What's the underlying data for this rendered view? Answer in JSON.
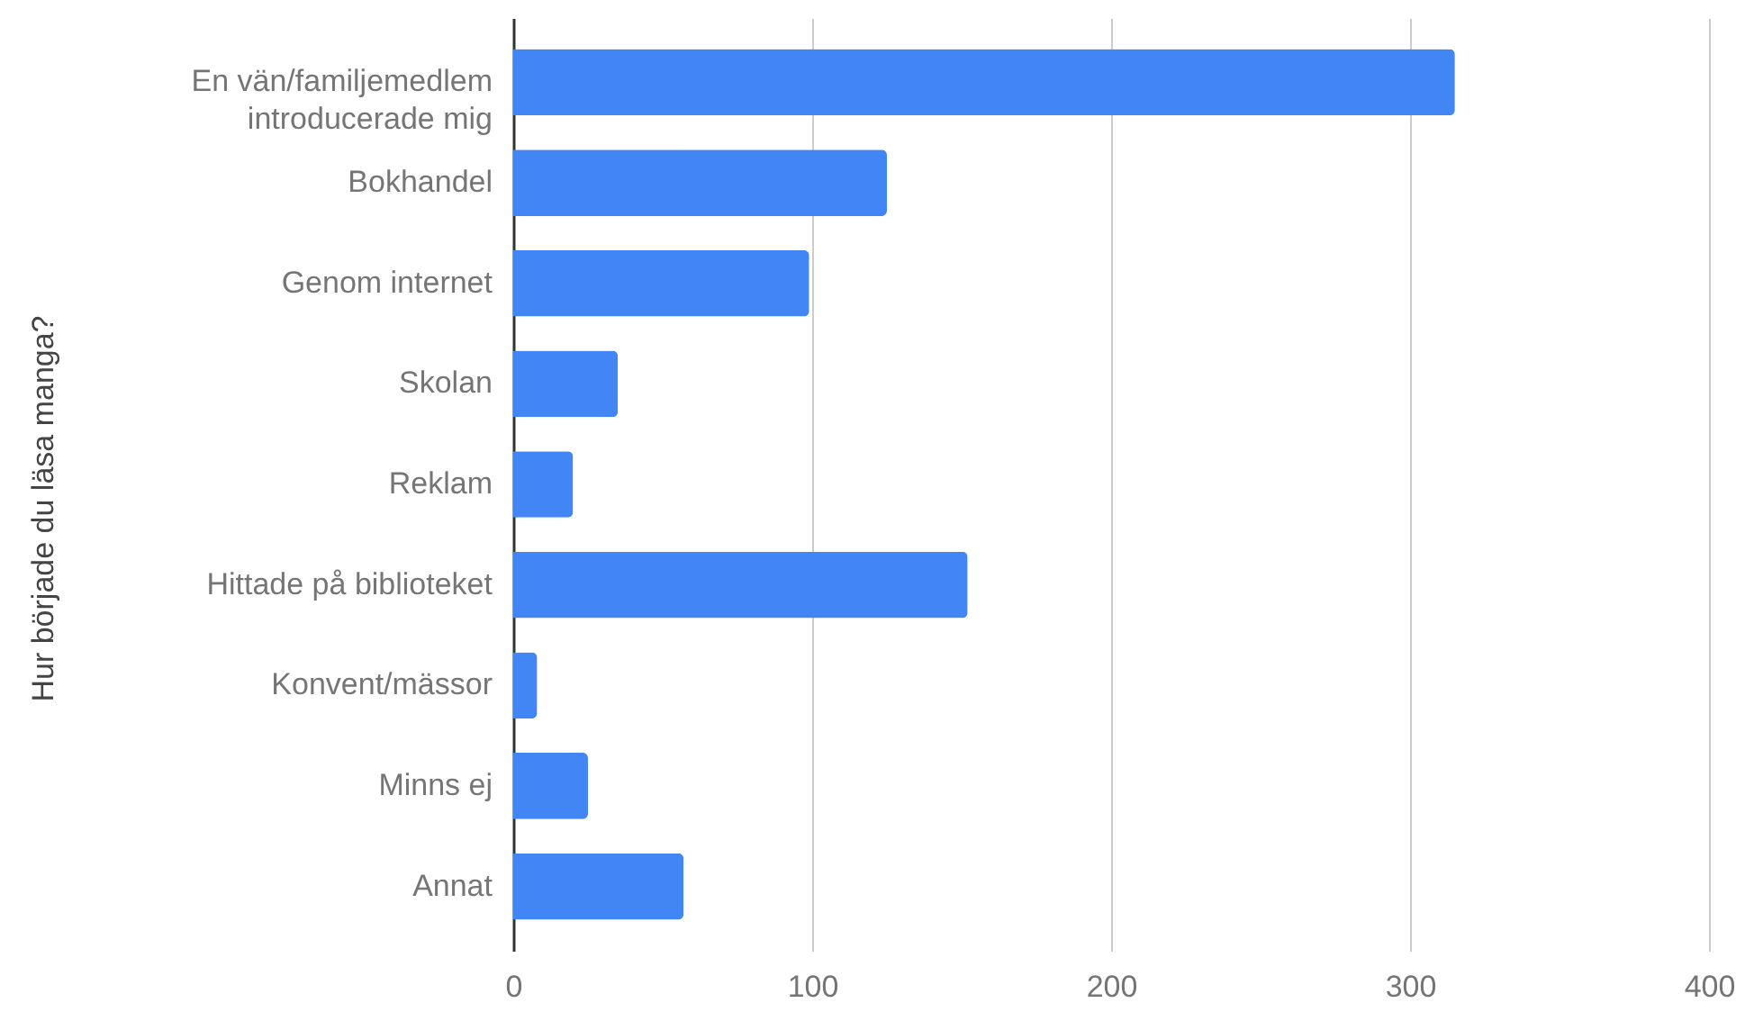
{
  "chart_data": {
    "type": "bar",
    "orientation": "horizontal",
    "ylabel": "Hur började du läsa manga?",
    "categories": [
      "En vän/familjemedlem introducerade mig",
      "Bokhandel",
      "Genom internet",
      "Skolan",
      "Reklam",
      "Hittade på biblioteket",
      "Konvent/mässor",
      "Minns ej",
      "Annat"
    ],
    "values": [
      315,
      125,
      99,
      35,
      20,
      152,
      8,
      25,
      57
    ],
    "color": "#4285f4",
    "xlim": [
      0,
      400
    ],
    "xticks": [
      0,
      100,
      200,
      300,
      400
    ],
    "grid": "x"
  }
}
